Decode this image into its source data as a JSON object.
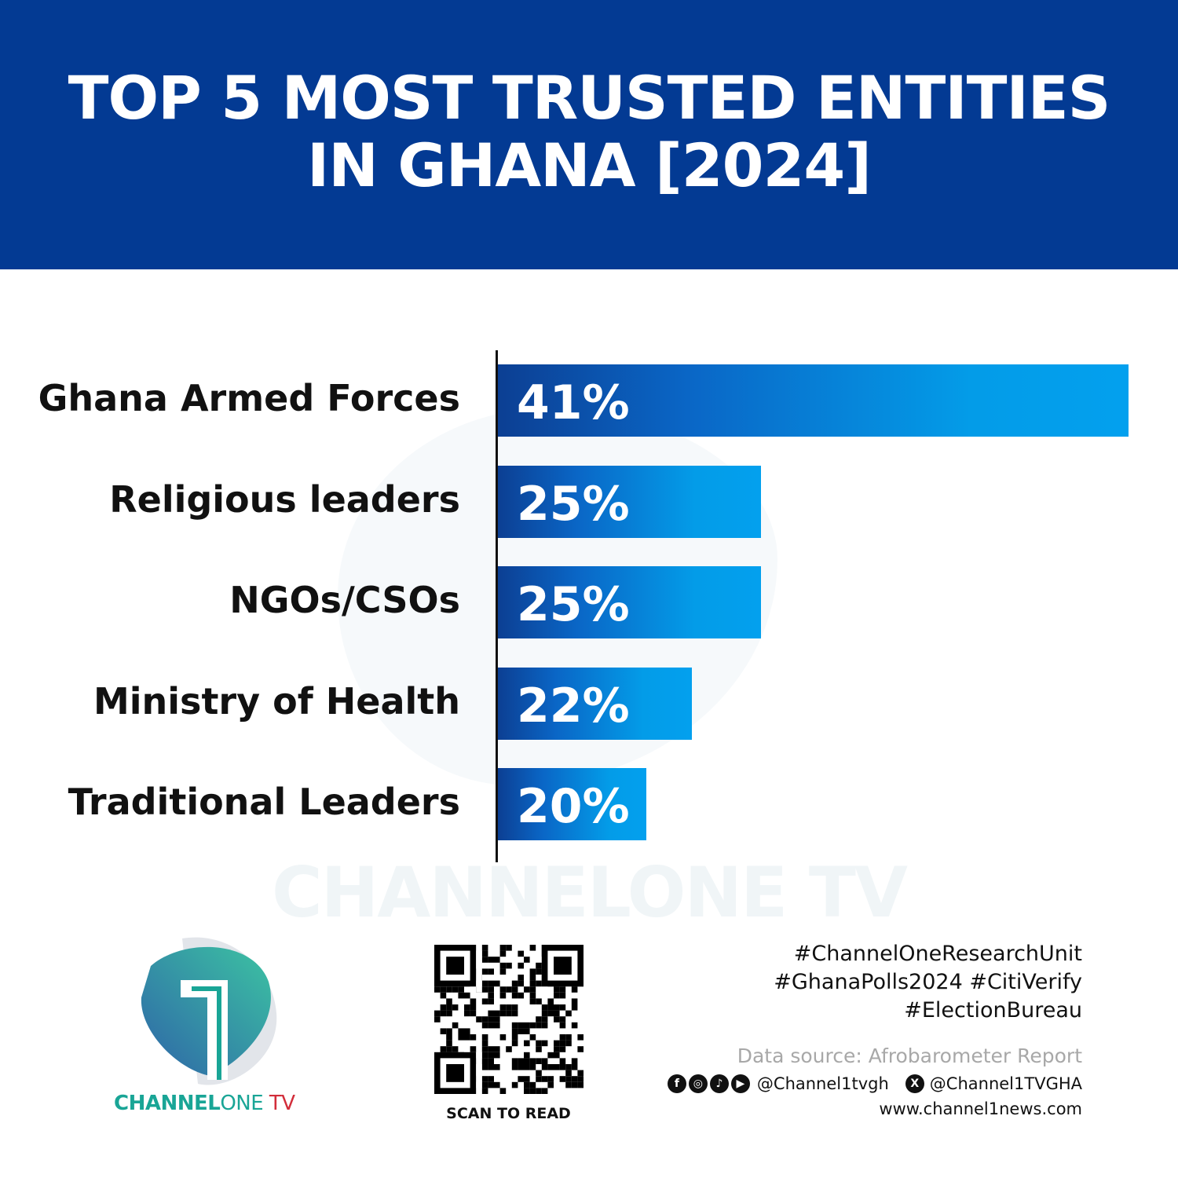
{
  "header": {
    "title_line1": "TOP 5 MOST TRUSTED ENTITIES",
    "title_line2": "IN GHANA [2024]",
    "background": "#033a93"
  },
  "chart_data": {
    "type": "bar",
    "orientation": "horizontal",
    "title": "TOP 5 MOST TRUSTED ENTITIES IN GHANA [2024]",
    "categories": [
      "Ghana Armed Forces",
      "Religious leaders",
      "NGOs/CSOs",
      "Ministry of Health",
      "Traditional Leaders"
    ],
    "values": [
      41,
      25,
      25,
      22,
      20
    ],
    "labels": [
      "41%",
      "25%",
      "25%",
      "22%",
      "20%"
    ],
    "unit": "%",
    "grid": false,
    "bar_colors": [
      "#0c3f93",
      "#03a0ee"
    ]
  },
  "watermark": "CHANNELONE TV",
  "footer": {
    "brand": {
      "a": "CHANNEL",
      "b": "ONE",
      "c": " TV"
    },
    "scan_label": "SCAN TO READ",
    "hashtags": [
      "#ChannelOneResearchUnit",
      "#GhanaPolls2024 #CitiVerify",
      "#ElectionBureau"
    ],
    "source": "Data source: Afrobarometer Report",
    "handle1": "@Channel1tvgh",
    "handle2": "@Channel1TVGHA",
    "website": "www.channel1news.com",
    "social_icons": [
      "facebook-icon",
      "instagram-icon",
      "tiktok-icon",
      "youtube-icon",
      "x-icon"
    ]
  }
}
